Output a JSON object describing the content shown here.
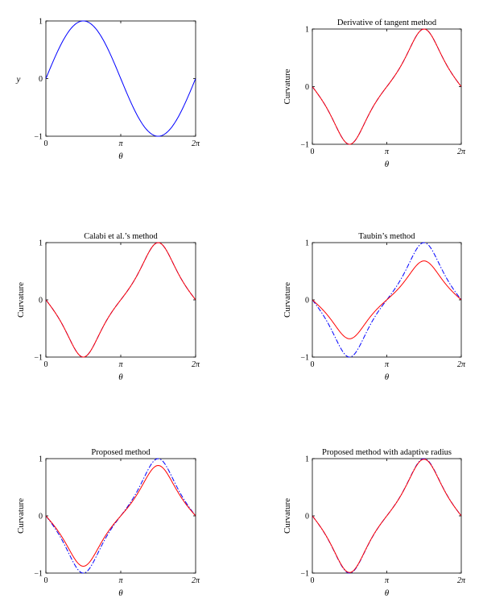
{
  "chart_data": [
    {
      "type": "line",
      "title": "",
      "xlabel": "θ",
      "ylabel": "y",
      "xlim": [
        0,
        6.2832
      ],
      "ylim": [
        -1,
        1
      ],
      "xtick_labels": [
        "0",
        "π",
        "2π"
      ],
      "ytick_labels": [
        "−1",
        "0",
        "1"
      ],
      "series": [
        {
          "color": "#0000ff",
          "style": "solid",
          "function": "sin",
          "x": [
            0,
            0.785,
            1.571,
            2.356,
            3.142,
            3.927,
            4.712,
            5.498,
            6.283
          ],
          "y": [
            0,
            0.707,
            1,
            0.707,
            0,
            -0.707,
            -1,
            -0.707,
            0
          ]
        }
      ]
    },
    {
      "type": "line",
      "title": "Derivative of tangent method",
      "xlabel": "θ",
      "ylabel": "Curvature",
      "xlim": [
        0,
        6.2832
      ],
      "ylim": [
        -1,
        1
      ],
      "xtick_labels": [
        "0",
        "π",
        "2π"
      ],
      "ytick_labels": [
        "−1",
        "0",
        "1"
      ],
      "series": [
        {
          "color": "#0000ff",
          "style": "dashdot",
          "function": "curvature",
          "scale": 1.0,
          "x": [
            0,
            0.785,
            1.571,
            2.356,
            3.142,
            3.927,
            4.712,
            5.498,
            6.283
          ],
          "y": [
            0,
            -0.4,
            -1,
            -0.4,
            0,
            0.4,
            1,
            0.4,
            0
          ]
        },
        {
          "color": "#ff0000",
          "style": "solid",
          "function": "curvature",
          "scale": 1.0,
          "x": [
            0,
            0.785,
            1.571,
            2.356,
            3.142,
            3.927,
            4.712,
            5.498,
            6.283
          ],
          "y": [
            0,
            -0.4,
            -1,
            -0.4,
            0,
            0.4,
            1,
            0.4,
            0
          ]
        }
      ]
    },
    {
      "type": "line",
      "title": "Calabi et al.’s method",
      "xlabel": "θ",
      "ylabel": "Curvature",
      "xlim": [
        0,
        6.2832
      ],
      "ylim": [
        -1,
        1
      ],
      "xtick_labels": [
        "0",
        "π",
        "2π"
      ],
      "ytick_labels": [
        "−1",
        "0",
        "1"
      ],
      "series": [
        {
          "color": "#0000ff",
          "style": "dashdot",
          "function": "curvature",
          "scale": 1.0,
          "x": [
            0,
            0.785,
            1.571,
            2.356,
            3.142,
            3.927,
            4.712,
            5.498,
            6.283
          ],
          "y": [
            0,
            -0.4,
            -1,
            -0.4,
            0,
            0.4,
            1,
            0.4,
            0
          ]
        },
        {
          "color": "#ff0000",
          "style": "solid",
          "function": "curvature",
          "scale": 1.0,
          "x": [
            0,
            0.785,
            1.571,
            2.356,
            3.142,
            3.927,
            4.712,
            5.498,
            6.283
          ],
          "y": [
            0,
            -0.4,
            -1,
            -0.4,
            0,
            0.4,
            1,
            0.4,
            0
          ]
        }
      ]
    },
    {
      "type": "line",
      "title": "Taubin’s method",
      "xlabel": "θ",
      "ylabel": "Curvature",
      "xlim": [
        0,
        6.2832
      ],
      "ylim": [
        -1,
        1
      ],
      "xtick_labels": [
        "0",
        "π",
        "2π"
      ],
      "ytick_labels": [
        "−1",
        "0",
        "1"
      ],
      "series": [
        {
          "color": "#0000ff",
          "style": "dashdot",
          "function": "curvature",
          "scale": 1.0,
          "x": [
            0,
            0.785,
            1.571,
            2.356,
            3.142,
            3.927,
            4.712,
            5.498,
            6.283
          ],
          "y": [
            0,
            -0.4,
            -1,
            -0.4,
            0,
            0.4,
            1,
            0.4,
            0
          ]
        },
        {
          "color": "#ff0000",
          "style": "solid",
          "function": "curvature",
          "scale": 0.68,
          "x": [
            0,
            0.785,
            1.571,
            2.356,
            3.142,
            3.927,
            4.712,
            5.498,
            6.283
          ],
          "y": [
            0,
            -0.35,
            -0.68,
            -0.35,
            0,
            0.35,
            0.68,
            0.35,
            0
          ]
        }
      ]
    },
    {
      "type": "line",
      "title": "Proposed method",
      "xlabel": "θ",
      "ylabel": "Curvature",
      "xlim": [
        0,
        6.2832
      ],
      "ylim": [
        -1,
        1
      ],
      "xtick_labels": [
        "0",
        "π",
        "2π"
      ],
      "ytick_labels": [
        "−1",
        "0",
        "1"
      ],
      "series": [
        {
          "color": "#0000ff",
          "style": "dashdot",
          "function": "curvature",
          "scale": 1.0,
          "x": [
            0,
            0.785,
            1.571,
            2.356,
            3.142,
            3.927,
            4.712,
            5.498,
            6.283
          ],
          "y": [
            0,
            -0.4,
            -1,
            -0.4,
            0,
            0.4,
            1,
            0.4,
            0
          ]
        },
        {
          "color": "#ff0000",
          "style": "solid",
          "function": "curvature",
          "scale": 0.88,
          "x": [
            0,
            0.785,
            1.571,
            2.356,
            3.142,
            3.927,
            4.712,
            5.498,
            6.283
          ],
          "y": [
            0,
            -0.38,
            -0.88,
            -0.38,
            0,
            0.38,
            0.88,
            0.38,
            0
          ]
        }
      ]
    },
    {
      "type": "line",
      "title": "Proposed method with adaptive radius",
      "xlabel": "θ",
      "ylabel": "Curvature",
      "xlim": [
        0,
        6.2832
      ],
      "ylim": [
        -1,
        1
      ],
      "xtick_labels": [
        "0",
        "π",
        "2π"
      ],
      "ytick_labels": [
        "−1",
        "0",
        "1"
      ],
      "series": [
        {
          "color": "#0000ff",
          "style": "dashdot",
          "function": "curvature",
          "scale": 1.0,
          "x": [
            0,
            0.785,
            1.571,
            2.356,
            3.142,
            3.927,
            4.712,
            5.498,
            6.283
          ],
          "y": [
            0,
            -0.4,
            -1,
            -0.4,
            0,
            0.4,
            1,
            0.4,
            0
          ]
        },
        {
          "color": "#ff0000",
          "style": "solid",
          "function": "curvature",
          "scale": 0.99,
          "x": [
            0,
            0.785,
            1.571,
            2.356,
            3.142,
            3.927,
            4.712,
            5.498,
            6.283
          ],
          "y": [
            0,
            -0.4,
            -0.99,
            -0.4,
            0,
            0.4,
            0.99,
            0.4,
            0
          ]
        }
      ]
    }
  ]
}
